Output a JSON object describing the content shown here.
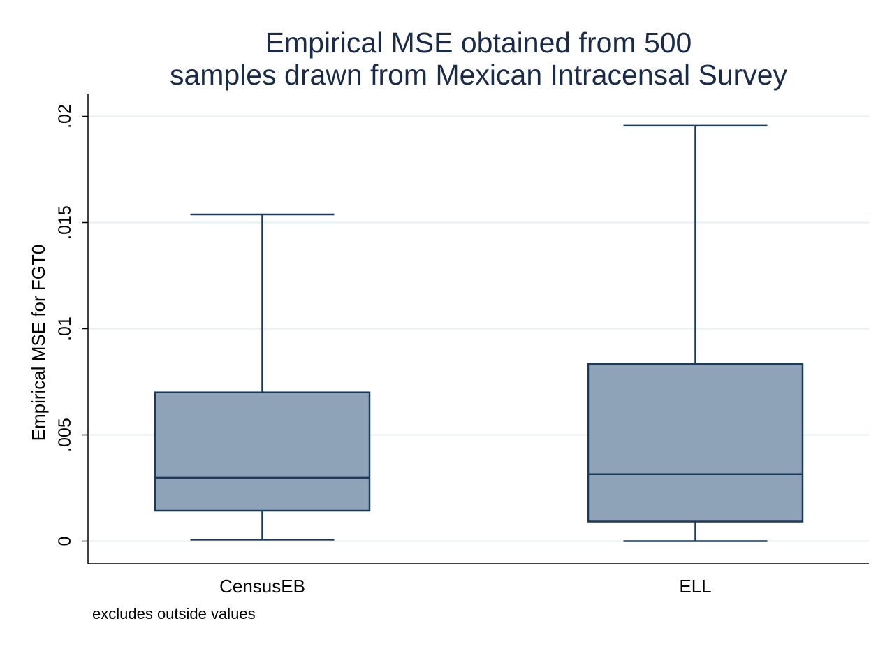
{
  "chart_data": {
    "type": "box",
    "title_lines": [
      "Empirical MSE obtained from 500",
      "samples drawn from Mexican Intracensal Survey"
    ],
    "ylabel": "Empirical MSE for FGT0",
    "xlabel": "",
    "note": "excludes outside values",
    "ylim": [
      -0.001,
      0.021
    ],
    "yticks": [
      0,
      0.005,
      0.01,
      0.015,
      0.02
    ],
    "ytick_labels": [
      "0",
      ".005",
      ".01",
      ".015",
      ".02"
    ],
    "grid": true,
    "legend": "none",
    "categories": [
      "CensusEB",
      "ELL"
    ],
    "boxes": [
      {
        "name": "CensusEB",
        "whisker_low": 7e-05,
        "q1": 0.00143,
        "median": 0.00298,
        "q3": 0.007,
        "whisker_high": 0.01538
      },
      {
        "name": "ELL",
        "whisker_low": 0.0,
        "q1": 0.00092,
        "median": 0.00315,
        "q3": 0.00833,
        "whisker_high": 0.01956
      }
    ],
    "colors": {
      "box_fill": "#8ea3b8",
      "box_stroke": "#1a3a5c",
      "grid": "#e6eeee",
      "axis": "#000000",
      "title": "#1a2b4a"
    }
  }
}
